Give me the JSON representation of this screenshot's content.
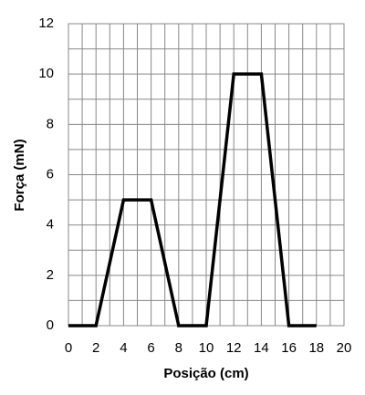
{
  "chart_data": {
    "type": "line",
    "x_label": "Posição (cm)",
    "y_label": "Força (mN)",
    "x": [
      0,
      2,
      4,
      6,
      8,
      10,
      12,
      14,
      16,
      18
    ],
    "series": [
      {
        "color": "#000000",
        "values": [
          0,
          0,
          5,
          5,
          0,
          0,
          10,
          10,
          0,
          0
        ]
      }
    ],
    "xlim": [
      0,
      20
    ],
    "xticks": [
      0,
      2,
      4,
      6,
      8,
      10,
      12,
      14,
      16,
      18,
      20
    ],
    "ylim": [
      0,
      12
    ],
    "yticks": [
      0,
      2,
      4,
      6,
      8,
      10,
      12
    ],
    "grid": true
  }
}
